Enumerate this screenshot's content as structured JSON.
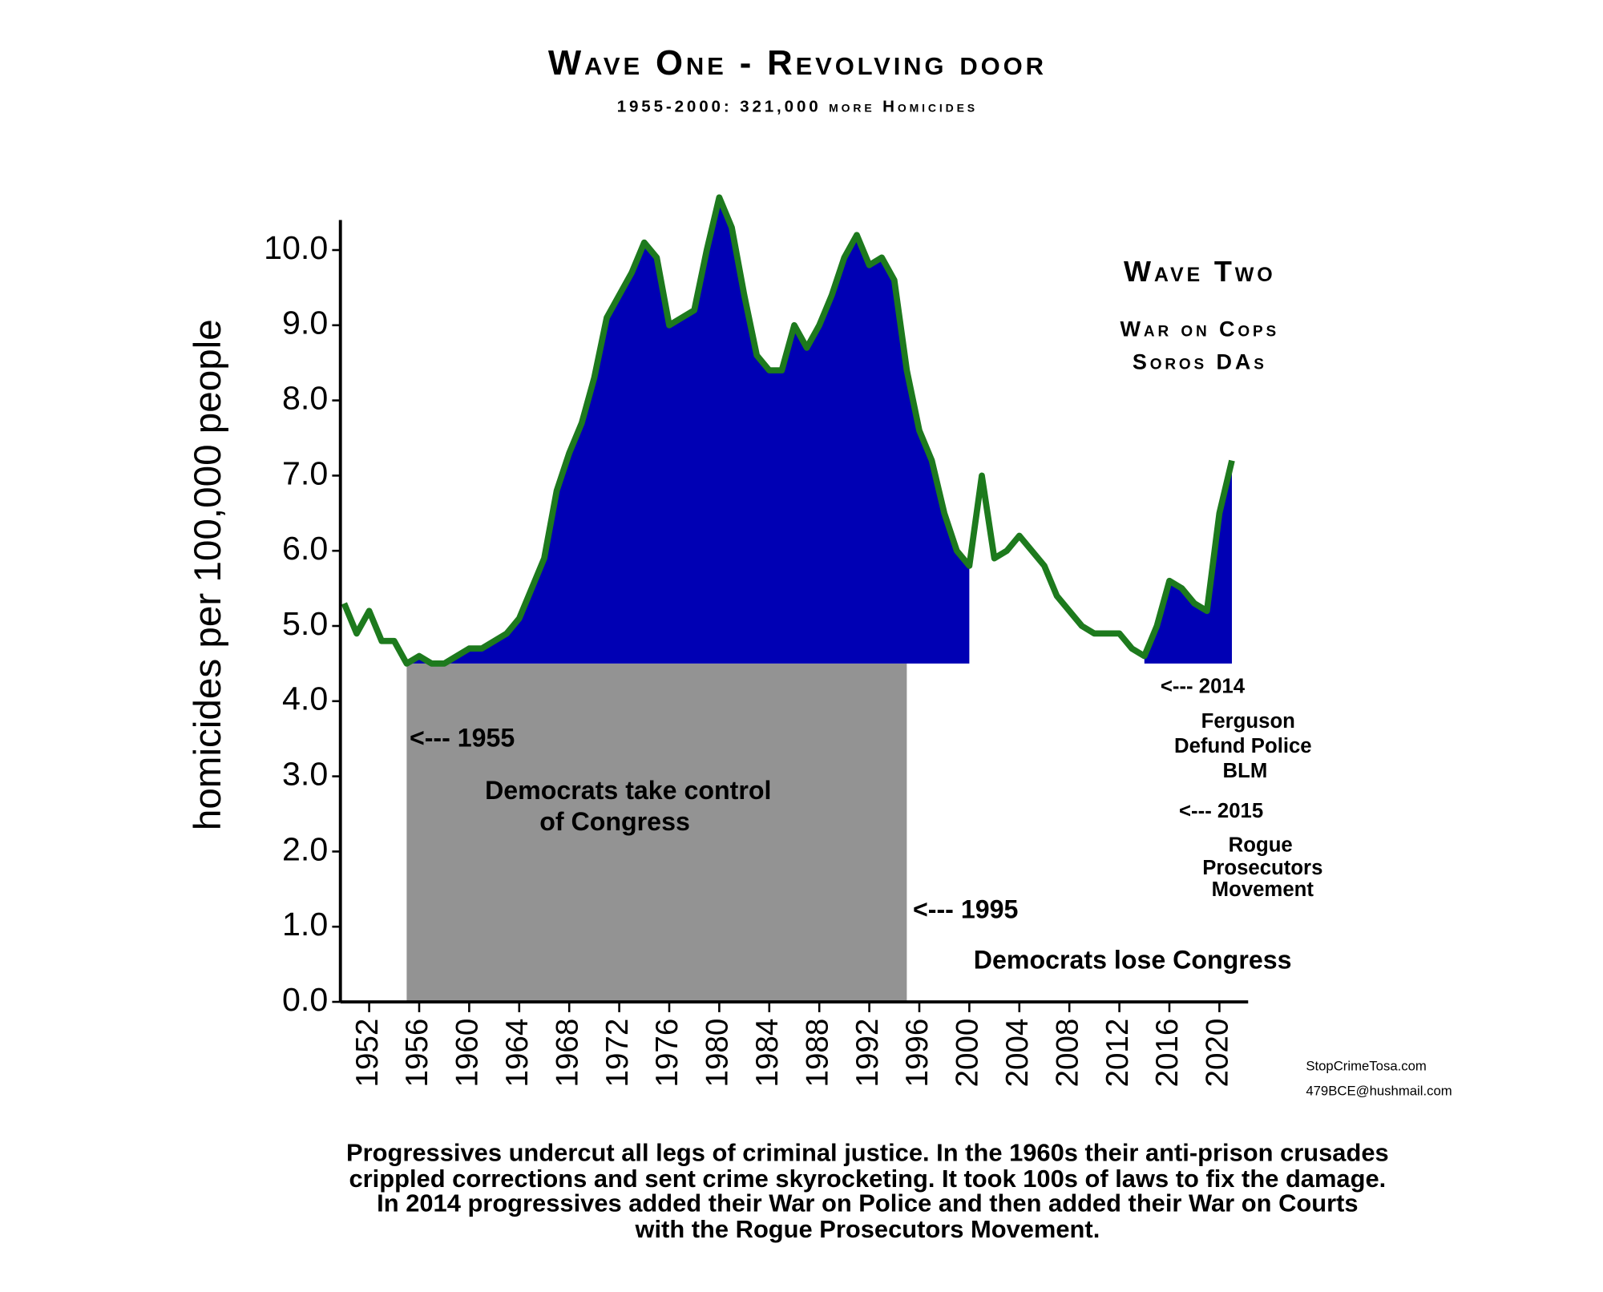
{
  "chart_data": {
    "type": "line",
    "title": "Wave One - Revolving door",
    "subtitle": "1955-2000: 321,000 more Homicides",
    "y_label": "homicides per 100,000 people",
    "x": [
      1950,
      1951,
      1952,
      1953,
      1954,
      1955,
      1956,
      1957,
      1958,
      1959,
      1960,
      1961,
      1962,
      1963,
      1964,
      1965,
      1966,
      1967,
      1968,
      1969,
      1970,
      1971,
      1972,
      1973,
      1974,
      1975,
      1976,
      1977,
      1978,
      1979,
      1980,
      1981,
      1982,
      1983,
      1984,
      1985,
      1986,
      1987,
      1988,
      1989,
      1990,
      1991,
      1992,
      1993,
      1994,
      1995,
      1996,
      1997,
      1998,
      1999,
      2000,
      2001,
      2002,
      2003,
      2004,
      2005,
      2006,
      2007,
      2008,
      2009,
      2010,
      2011,
      2012,
      2013,
      2014,
      2015,
      2016,
      2017,
      2018,
      2019,
      2020,
      2021
    ],
    "series": [
      {
        "name": "homicide rate",
        "color": "#1d7a1d",
        "values": [
          5.3,
          4.9,
          5.2,
          4.8,
          4.8,
          4.5,
          4.6,
          4.5,
          4.5,
          4.6,
          4.7,
          4.7,
          4.8,
          4.9,
          5.1,
          5.5,
          5.9,
          6.8,
          7.3,
          7.7,
          8.3,
          9.1,
          9.4,
          9.7,
          10.1,
          9.9,
          9.0,
          9.1,
          9.2,
          10.0,
          10.7,
          10.3,
          9.4,
          8.6,
          8.4,
          8.4,
          9.0,
          8.7,
          9.0,
          9.4,
          9.9,
          10.2,
          9.8,
          9.9,
          9.6,
          8.4,
          7.6,
          7.2,
          6.5,
          6.0,
          5.8,
          7.0,
          5.9,
          6.0,
          6.2,
          6.0,
          5.8,
          5.4,
          5.2,
          5.0,
          4.9,
          4.9,
          4.9,
          4.7,
          4.6,
          5.0,
          5.6,
          5.5,
          5.3,
          5.2,
          6.5,
          7.2
        ]
      }
    ],
    "fill_color": "#0000b4",
    "fill_baseline": 4.5,
    "fill_regions": [
      {
        "from": 1955,
        "to": 2000
      },
      {
        "from": 2014,
        "to": 2021
      }
    ],
    "shaded_span": {
      "from": 1955,
      "to": 1995,
      "top": 4.5,
      "color": "#939393"
    },
    "xlim": [
      1949.7,
      2022.3
    ],
    "xticks": [
      1952,
      1956,
      1960,
      1964,
      1968,
      1972,
      1976,
      1980,
      1984,
      1988,
      1992,
      1996,
      2000,
      2004,
      2008,
      2012,
      2016,
      2020
    ],
    "ylim": [
      0,
      10.4
    ],
    "yticks": [
      {
        "value": 0,
        "label": "0.0"
      },
      {
        "value": 1,
        "label": "1.0"
      },
      {
        "value": 2,
        "label": "2.0"
      },
      {
        "value": 3,
        "label": "3.0"
      },
      {
        "value": 4,
        "label": "4.0"
      },
      {
        "value": 5,
        "label": "5.0"
      },
      {
        "value": 6,
        "label": "6.0"
      },
      {
        "value": 7,
        "label": "7.0"
      },
      {
        "value": 8,
        "label": "8.0"
      },
      {
        "value": 9,
        "label": "9.0"
      },
      {
        "value": 10,
        "label": "10.0"
      }
    ],
    "annotations": [
      "Wave Two",
      "War on Cops",
      "Soros DAs",
      "<--- 2014",
      "Ferguson",
      "Defund Police",
      "BLM",
      "<--- 2015",
      "Rogue",
      "Prosecutors",
      "Movement",
      "<--- 1955",
      "Democrats take control",
      "of Congress",
      "<--- 1995",
      "Democrats lose Congress",
      "StopCrimeTosa.com",
      "479BCE@hushmail.com"
    ],
    "caption": [
      "Progressives undercut all legs of criminal justice. In the 1960s their anti-prison crusades",
      "crippled corrections and sent crime skyrocketing.  It took 100s of laws to fix the damage.",
      "In 2014 progressives added their War on Police and then added their War on Courts",
      "with the Rogue Prosecutors Movement."
    ]
  }
}
